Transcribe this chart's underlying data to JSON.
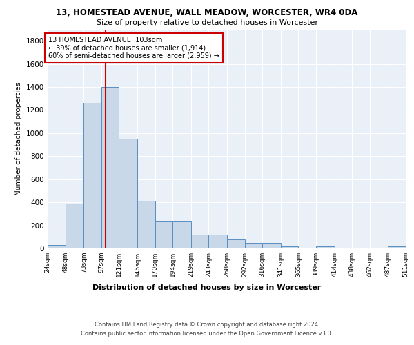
{
  "title": "13, HOMESTEAD AVENUE, WALL MEADOW, WORCESTER, WR4 0DA",
  "subtitle": "Size of property relative to detached houses in Worcester",
  "xlabel": "Distribution of detached houses by size in Worcester",
  "ylabel": "Number of detached properties",
  "bar_color": "#c8d8e8",
  "bar_edge_color": "#5a8fc0",
  "bins": [
    24,
    48,
    73,
    97,
    121,
    146,
    170,
    194,
    219,
    243,
    268,
    292,
    316,
    341,
    365,
    389,
    414,
    438,
    462,
    487,
    511
  ],
  "counts": [
    30,
    390,
    1260,
    1400,
    950,
    415,
    235,
    235,
    120,
    120,
    75,
    50,
    45,
    20,
    0,
    20,
    0,
    0,
    0,
    20
  ],
  "property_size": 103,
  "vline_color": "#cc0000",
  "annotation_text": "13 HOMESTEAD AVENUE: 103sqm\n← 39% of detached houses are smaller (1,914)\n60% of semi-detached houses are larger (2,959) →",
  "annotation_box_color": "#ffffff",
  "annotation_box_edge": "#cc0000",
  "footer_text": "Contains HM Land Registry data © Crown copyright and database right 2024.\nContains public sector information licensed under the Open Government Licence v3.0.",
  "ylim": [
    0,
    1900
  ],
  "yticks": [
    0,
    200,
    400,
    600,
    800,
    1000,
    1200,
    1400,
    1600,
    1800
  ],
  "plot_bg_color": "#eaf0f8"
}
